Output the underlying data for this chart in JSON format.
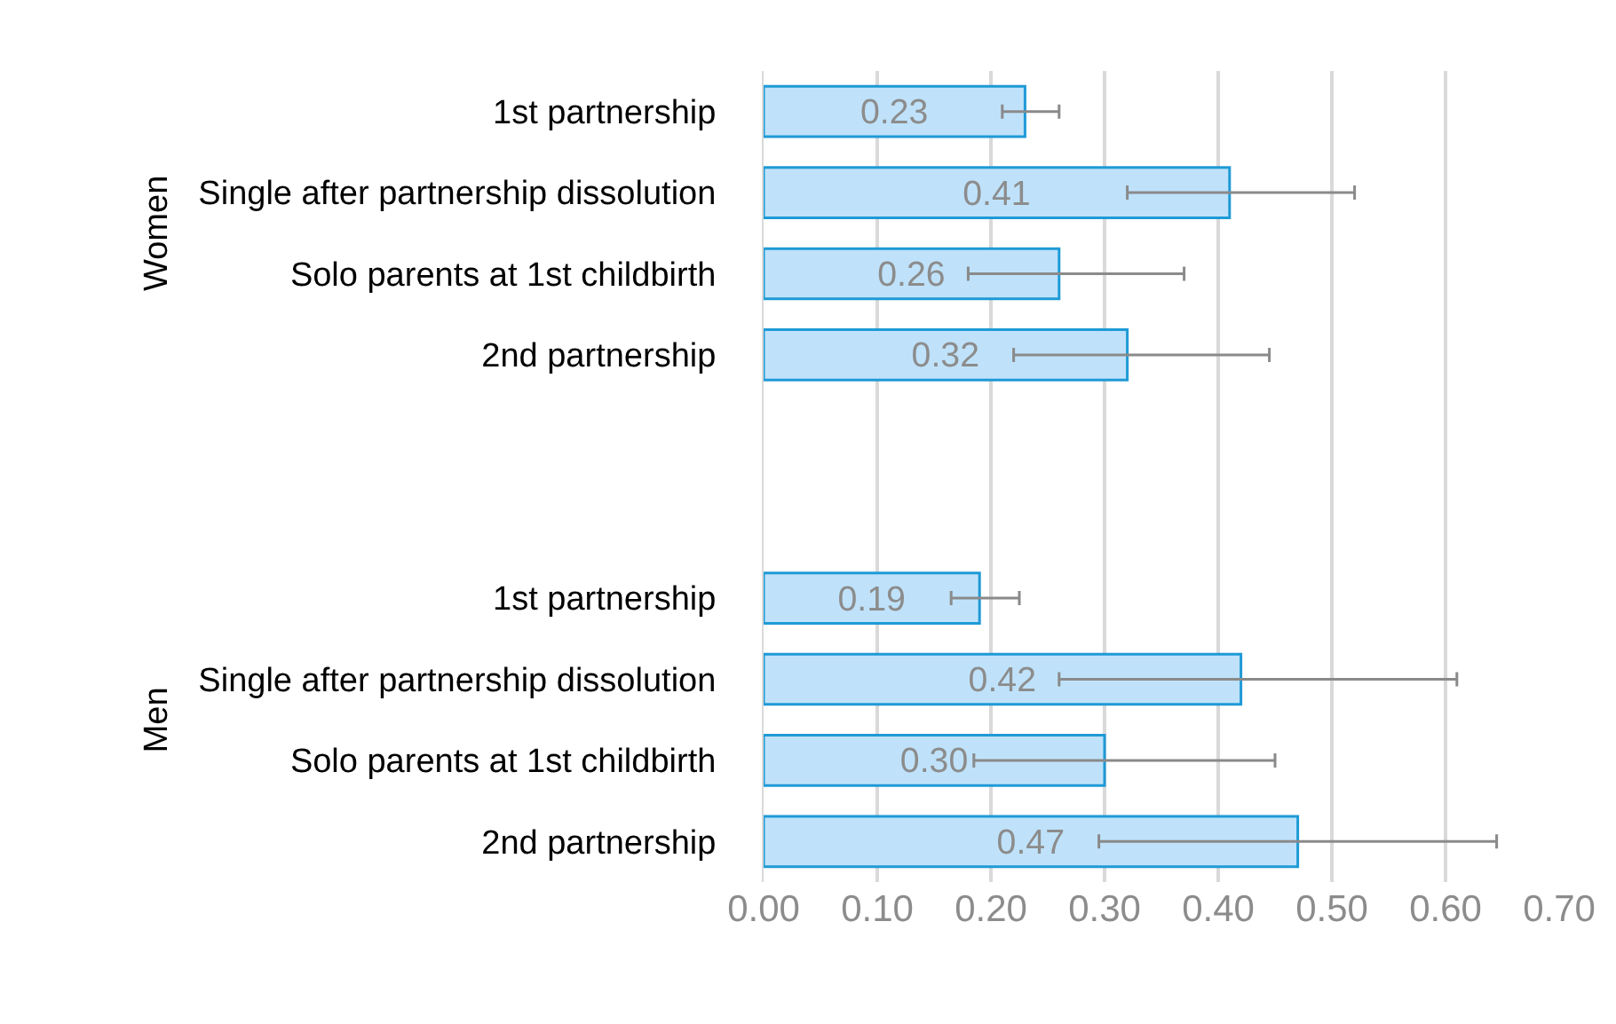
{
  "chart_data": {
    "type": "bar",
    "orientation": "horizontal",
    "categories": [
      "1st partnership",
      "Single after partnership dissolution",
      "Solo parents at 1st childbirth",
      "2nd partnership",
      null,
      null,
      "1st partnership",
      "Single after partnership dissolution",
      "Solo parents at 1st childbirth",
      "2nd partnership"
    ],
    "values": [
      0.23,
      0.41,
      0.26,
      0.32,
      null,
      null,
      0.19,
      0.42,
      0.3,
      0.47
    ],
    "errors": [
      [
        0.21,
        0.26
      ],
      [
        0.32,
        0.52
      ],
      [
        0.18,
        0.37
      ],
      [
        0.22,
        0.445
      ],
      null,
      null,
      [
        0.165,
        0.225
      ],
      [
        0.26,
        0.61
      ],
      [
        0.185,
        0.45
      ],
      [
        0.295,
        0.645
      ]
    ],
    "color": "#bfe2fa",
    "annotations": [
      "Women",
      "Men"
    ],
    "xlim": [
      0,
      0.7
    ],
    "xticks": [
      {
        "value": 0,
        "label": "0.00"
      },
      {
        "value": 0.1,
        "label": "0.10"
      },
      {
        "value": 0.2,
        "label": "0.20"
      },
      {
        "value": 0.3,
        "label": "0.30"
      },
      {
        "value": 0.4,
        "label": "0.40"
      },
      {
        "value": 0.5,
        "label": "0.50"
      },
      {
        "value": 0.6,
        "label": "0.60"
      },
      {
        "value": 0.7,
        "label": "0.70"
      }
    ],
    "value_labels": [
      "0.23",
      "0.41",
      "0.26",
      "0.32",
      null,
      null,
      "0.19",
      "0.42",
      "0.30",
      "0.47"
    ],
    "grid": "x",
    "legend": false
  }
}
